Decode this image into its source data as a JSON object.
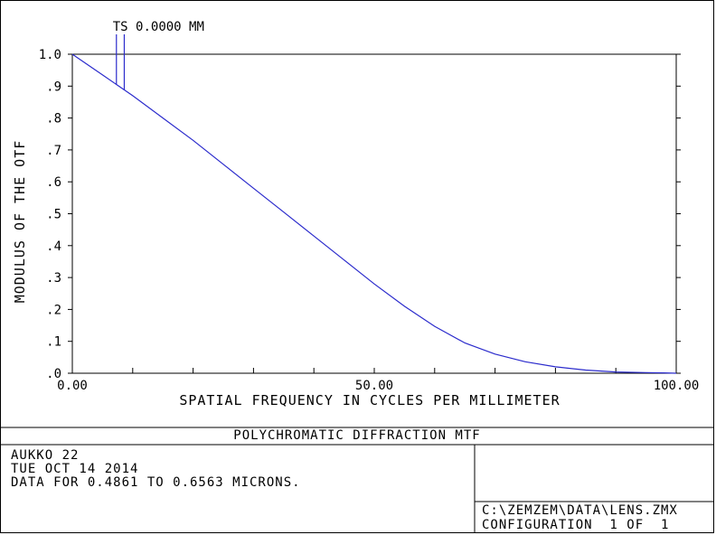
{
  "chart_data": {
    "type": "line",
    "xlabel": "SPATIAL FREQUENCY IN CYCLES PER MILLIMETER",
    "ylabel": "MODULUS OF THE OTF",
    "xlim": [
      0,
      100
    ],
    "ylim": [
      0,
      1
    ],
    "x_ticks": [
      0,
      10,
      20,
      30,
      40,
      50,
      60,
      70,
      80,
      90,
      100
    ],
    "x_tick_labels": [
      {
        "value": 0,
        "label": "0.00"
      },
      {
        "value": 50,
        "label": "50.00"
      },
      {
        "value": 100,
        "label": "100.00"
      }
    ],
    "y_ticks": [
      {
        "value": 0.0,
        "label": ".0"
      },
      {
        "value": 0.1,
        "label": ".1"
      },
      {
        "value": 0.2,
        "label": ".2"
      },
      {
        "value": 0.3,
        "label": ".3"
      },
      {
        "value": 0.4,
        "label": ".4"
      },
      {
        "value": 0.5,
        "label": ".5"
      },
      {
        "value": 0.6,
        "label": ".6"
      },
      {
        "value": 0.7,
        "label": ".7"
      },
      {
        "value": 0.8,
        "label": ".8"
      },
      {
        "value": 0.9,
        "label": ".9"
      },
      {
        "value": 1.0,
        "label": "1.0"
      }
    ],
    "series": [
      {
        "x": [
          0,
          5,
          10,
          15,
          20,
          25,
          30,
          35,
          40,
          45,
          50,
          55,
          60,
          65,
          70,
          75,
          80,
          85,
          90,
          95,
          98,
          100
        ],
        "y": [
          1.0,
          0.935,
          0.87,
          0.8,
          0.73,
          0.655,
          0.58,
          0.505,
          0.43,
          0.355,
          0.28,
          0.21,
          0.147,
          0.095,
          0.06,
          0.036,
          0.02,
          0.01,
          0.004,
          0.002,
          0.001,
          0.0
        ]
      }
    ],
    "annotation": {
      "label": "TS 0.0000 MM",
      "marker_x": [
        7.3,
        8.6
      ]
    }
  },
  "footer": {
    "title": "POLYCHROMATIC DIFFRACTION MTF",
    "info_lines": [
      "AUKKO 22",
      "TUE OCT 14 2014",
      "DATA FOR 0.4861 TO 0.6563 MICRONS."
    ],
    "file_path": "C:\\ZEMZEM\\DATA\\LENS.ZMX",
    "configuration": "CONFIGURATION  1 OF  1"
  }
}
